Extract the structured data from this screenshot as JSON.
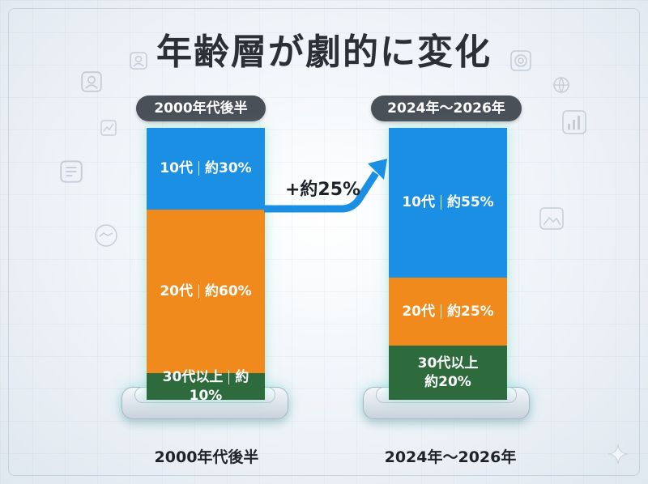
{
  "title": "年齢層が劇的に変化",
  "colors": {
    "teens": "#1b8fe3",
    "twenties": "#f08a1c",
    "thirties_plus": "#2e6b3c"
  },
  "arrow": {
    "label": "+約25%",
    "color": "#1b8fe3"
  },
  "chart_data": {
    "type": "bar",
    "stacked": true,
    "categories": [
      "2000年代後半",
      "2024年～2026年"
    ],
    "series": [
      {
        "name": "10代",
        "values": [
          30,
          55
        ]
      },
      {
        "name": "20代",
        "values": [
          60,
          25
        ]
      },
      {
        "name": "30代以上",
        "values": [
          10,
          20
        ]
      }
    ]
  },
  "bars": [
    {
      "header": "2000年代後半",
      "footer": "2000年代後半",
      "segments": [
        {
          "group": "10代",
          "sep": "|",
          "value": "約30%"
        },
        {
          "group": "20代",
          "sep": "|",
          "value": "約60%"
        },
        {
          "group": "30代以上",
          "sep": "|",
          "value": "約10%"
        }
      ]
    },
    {
      "header": "2024年～2026年",
      "footer": "2024年～2026年",
      "segments": [
        {
          "group": "10代",
          "sep": "|",
          "value": "約55%"
        },
        {
          "group": "20代",
          "sep": "|",
          "value": "約25%"
        },
        {
          "group": "30代以上",
          "value": "約20%"
        }
      ]
    }
  ],
  "icons": [
    "user-icon",
    "chart-icon",
    "document-icon",
    "handshake-icon",
    "target-icon",
    "globe-icon",
    "bar-chart-icon",
    "person-icon",
    "image-icon",
    "sparkle-icon"
  ]
}
